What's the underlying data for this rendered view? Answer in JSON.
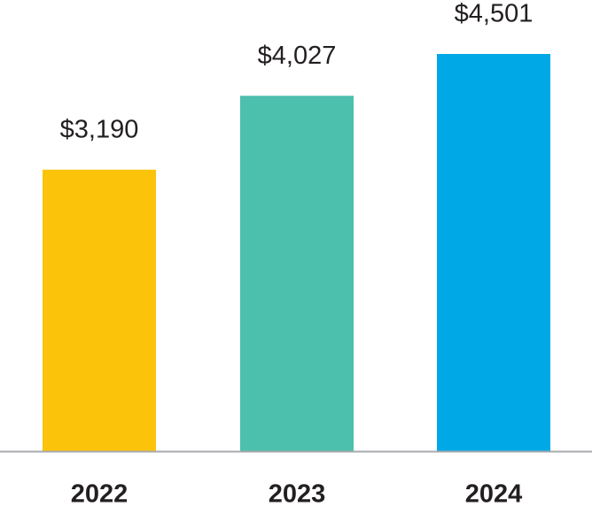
{
  "chart_data": {
    "type": "bar",
    "categories": [
      "2022",
      "2023",
      "2024"
    ],
    "values": [
      3190,
      4027,
      4501
    ],
    "value_labels": [
      "$3,190",
      "$4,027",
      "$4,501"
    ],
    "colors": [
      "#fcc30b",
      "#4cbfad",
      "#00a8e6"
    ],
    "grid": false
  }
}
